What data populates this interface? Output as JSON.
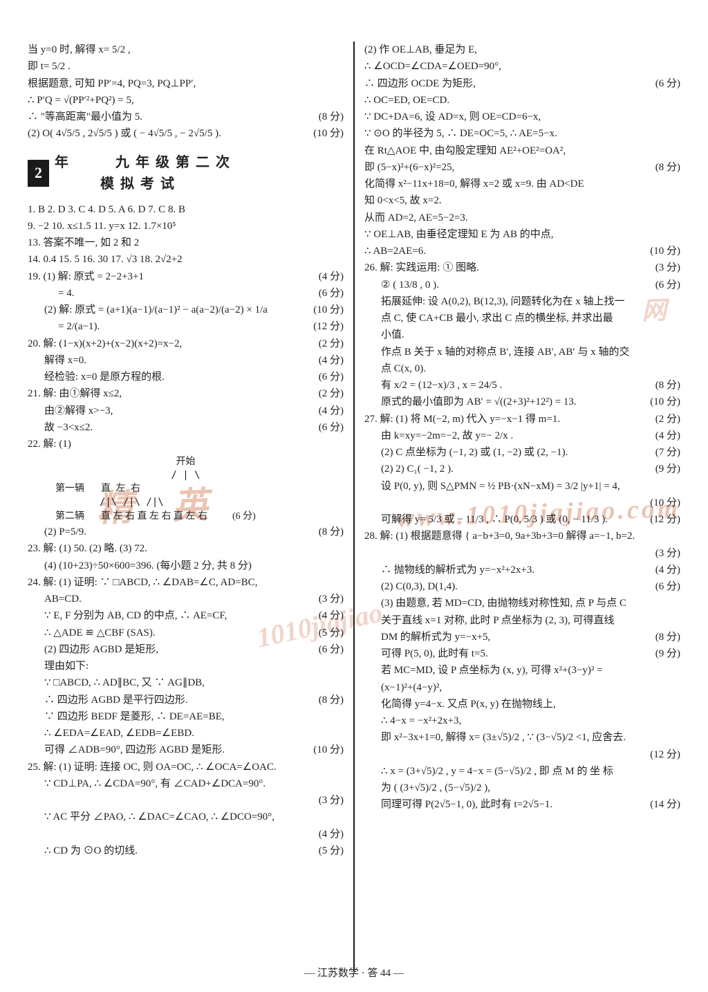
{
  "footer": "— 江苏数学 · 答 44 —",
  "watermarks": {
    "a": "精 英",
    "b": "www.1010jiajiao.com",
    "c": "网",
    "d": "1010jiajiao"
  },
  "title": {
    "num": "2",
    "text": "年　　　九 年 级 第 二 次\n　　　模 拟 考 试"
  },
  "left": [
    {
      "t": "当 y=0 时, 解得 x= 5/2 ,"
    },
    {
      "t": "即 t= 5/2 ."
    },
    {
      "t": "根据题意, 可知 PP′=4, PQ=3, PQ⊥PP′,"
    },
    {
      "t": "∴ P′Q = √(PP′²+PQ²) = 5,"
    },
    {
      "t": "∴ \"等高距离\"最小值为 5.",
      "p": "(8 分)"
    },
    {
      "t": "(2) O( 4√5/5 , 2√5/5 ) 或 ( − 4√5/5 , − 2√5/5 ).",
      "p": "(10 分)"
    }
  ],
  "leftB": [
    {
      "t": "1. B  2. D  3. C  4. D  5. A  6. D  7. C  8. B"
    },
    {
      "t": "9. −2  10. x≤1.5  11. y=x  12. 1.7×10⁵"
    },
    {
      "t": "13. 答案不唯一, 如 2 和 2"
    },
    {
      "t": "14. 0.4  15. 5  16. 30  17. √3  18. 2√2+2"
    },
    {
      "t": "19. (1) 解: 原式 = 2−2+3+1",
      "p": "(4 分)"
    },
    {
      "t": "                = 4.",
      "cls": "indent2",
      "p": "(6 分)"
    },
    {
      "t": "(2) 解: 原式 = (a+1)(a−1)/(a−1)² − a(a−2)/(a−2) × 1/a",
      "cls": "indent1",
      "p": "(10 分)"
    },
    {
      "t": "              = 2/(a−1).",
      "cls": "indent2",
      "p": "(12 分)"
    },
    {
      "t": "20. 解: (1−x)(x+2)+(x−2)(x+2)=x−2,",
      "p": "(2 分)"
    },
    {
      "t": "解得 x=0.",
      "cls": "indent1",
      "p": "(4 分)"
    },
    {
      "t": "经检验: x=0 是原方程的根.",
      "cls": "indent1",
      "p": "(6 分)"
    },
    {
      "t": "21. 解: 由①解得 x≤2,",
      "p": "(2 分)"
    },
    {
      "t": "由②解得 x>−3,",
      "cls": "indent1",
      "p": "(4 分)"
    },
    {
      "t": "故 −3<x≤2.",
      "cls": "indent1",
      "p": "(6 分)"
    },
    {
      "t": "22. 解: (1)"
    }
  ],
  "diagram": {
    "start": "开始",
    "row1_label": "第一辆",
    "row1": "直      左      右",
    "branches": "/|\\   /|\\   /|\\",
    "row2_label": "第二辆",
    "row2": "直 左 右  直 左 右  直 左 右",
    "row2_pts": "(6 分)"
  },
  "leftC": [
    {
      "t": "(2) P=5/9.",
      "cls": "indent1",
      "p": "(8 分)"
    },
    {
      "t": "23. 解: (1) 50.   (2) 略.   (3) 72."
    },
    {
      "t": "(4) (10+23)÷50×600=396.     (每小题 2 分, 共 8 分)",
      "cls": "indent1"
    },
    {
      "t": "24. 解: (1) 证明: ∵ □ABCD, ∴ ∠DAB=∠C, AD=BC,"
    },
    {
      "t": "AB=CD.",
      "cls": "indent1",
      "p": "(3 分)"
    },
    {
      "t": "∵ E, F 分别为 AB, CD 的中点, ∴ AE=CF,",
      "cls": "indent1",
      "p": "(4 分)"
    },
    {
      "t": "∴ △ADE ≌ △CBF (SAS).",
      "cls": "indent1",
      "p": "(5 分)"
    },
    {
      "t": "(2) 四边形 AGBD 是矩形,",
      "cls": "indent1",
      "p": "(6 分)"
    },
    {
      "t": "理由如下:",
      "cls": "indent1"
    },
    {
      "t": "∵ □ABCD, ∴ AD∥BC, 又 ∵ AG∥DB,",
      "cls": "indent1"
    },
    {
      "t": "∴ 四边形 AGBD 是平行四边形.",
      "cls": "indent1",
      "p": "(8 分)"
    },
    {
      "t": "∵ 四边形 BEDF 是菱形, ∴ DE=AE=BE,",
      "cls": "indent1"
    },
    {
      "t": "∴ ∠EDA=∠EAD, ∠EDB=∠EBD.",
      "cls": "indent1"
    },
    {
      "t": "可得 ∠ADB=90°, 四边形 AGBD 是矩形.",
      "cls": "indent1",
      "p": "(10 分)"
    },
    {
      "t": "25. 解: (1) 证明: 连接 OC, 则 OA=OC, ∴ ∠OCA=∠OAC."
    },
    {
      "t": "∵ CD⊥PA, ∴ ∠CDA=90°, 有 ∠CAD+∠DCA=90°.",
      "cls": "indent1"
    },
    {
      "t": "",
      "p": "(3 分)"
    },
    {
      "t": "∵ AC 平分 ∠PAO, ∴ ∠DAC=∠CAO, ∴ ∠DCO=90°,",
      "cls": "indent1"
    },
    {
      "t": "",
      "p": "(4 分)"
    },
    {
      "t": "∴ CD 为 ⊙O 的切线.",
      "cls": "indent1",
      "p": "(5 分)"
    }
  ],
  "right": [
    {
      "t": "(2) 作 OE⊥AB, 垂足为 E,"
    },
    {
      "t": "∴ ∠OCD=∠CDA=∠OED=90°,"
    },
    {
      "t": "∴ 四边形 OCDE 为矩形,",
      "p": "(6 分)"
    },
    {
      "t": "∴ OC=ED, OE=CD."
    },
    {
      "t": "∵ DC+DA=6, 设 AD=x, 则 OE=CD=6−x,"
    },
    {
      "t": "∵ ⊙O 的半径为 5, ∴ DE=OC=5, ∴ AE=5−x."
    },
    {
      "t": "在 Rt△AOE 中, 由勾股定理知 AE²+OE²=OA²,"
    },
    {
      "t": "即 (5−x)²+(6−x)²=25,",
      "p": "(8 分)"
    },
    {
      "t": "化简得 x²−11x+18=0, 解得 x=2 或 x=9. 由 AD<DE"
    },
    {
      "t": "知 0<x<5, 故 x=2."
    },
    {
      "t": "从而 AD=2, AE=5−2=3."
    },
    {
      "t": "∵ OE⊥AB, 由垂径定理知 E 为 AB 的中点,"
    },
    {
      "t": "∴ AB=2AE=6.",
      "p": "(10 分)"
    },
    {
      "t": "26. 解: 实践运用: ① 图略.",
      "p": "(3 分)"
    },
    {
      "t": "② ( 13/8 , 0 ).",
      "cls": "indent1",
      "p": "(6 分)"
    },
    {
      "t": "拓展延伸: 设 A(0,2), B(12,3), 问题转化为在 x 轴上找一",
      "cls": "indent1"
    },
    {
      "t": "点 C, 使 CA+CB 最小, 求出 C 点的横坐标, 并求出最",
      "cls": "indent1"
    },
    {
      "t": "小值.",
      "cls": "indent1"
    },
    {
      "t": "作点 B 关于 x 轴的对称点 B′, 连接 AB′, AB′ 与 x 轴的交",
      "cls": "indent1"
    },
    {
      "t": "点 C(x, 0).",
      "cls": "indent1"
    },
    {
      "t": "有 x/2 = (12−x)/3 , x = 24/5 .",
      "cls": "indent1",
      "p": "(8 分)"
    },
    {
      "t": "原式的最小值即为 AB′ = √((2+3)²+12²) = 13.",
      "cls": "indent1",
      "p": "(10 分)"
    },
    {
      "t": "27. 解: (1) 将 M(−2, m) 代入 y=−x−1 得 m=1.",
      "p": "(2 分)"
    },
    {
      "t": "由 k=xy=−2m=−2, 故 y=− 2/x .",
      "cls": "indent1",
      "p": "(4 分)"
    },
    {
      "t": "(2) C 点坐标为 (−1, 2) 或 (1, −2) 或 (2, −1).",
      "cls": "indent1",
      "p": "(7 分)"
    },
    {
      "t": "(2) 2) C₁( −1, 2 ).",
      "cls": "indent1",
      "p": "(9 分)"
    },
    {
      "t": "设 P(0, y), 则 S△PMN = ½ PB·(xN−xM) = 3/2 |y+1| = 4,",
      "cls": "indent1"
    },
    {
      "t": "",
      "p": "(10 分)"
    },
    {
      "t": "可解得 y= 5/3 或 − 11/3 , ∴ P(0, 5/3 ) 或 (0, − 11/3 ).",
      "cls": "indent1",
      "p": "(12 分)"
    },
    {
      "t": "28. 解: (1) 根据题意得 { a−b+3=0,  9a+3b+3=0  解得 a=−1, b=2."
    },
    {
      "t": "",
      "p": "(3 分)"
    },
    {
      "t": "∴ 抛物线的解析式为 y=−x²+2x+3.",
      "cls": "indent1",
      "p": "(4 分)"
    },
    {
      "t": "(2) C(0,3), D(1,4).",
      "cls": "indent1",
      "p": "(6 分)"
    },
    {
      "t": "(3) 由题意, 若 MD=CD, 由抛物线对称性知, 点 P 与点 C",
      "cls": "indent1"
    },
    {
      "t": "关于直线 x=1 对称, 此时 P 点坐标为 (2, 3), 可得直线",
      "cls": "indent1"
    },
    {
      "t": "DM 的解析式为 y=−x+5,",
      "cls": "indent1",
      "p": "(8 分)"
    },
    {
      "t": "可得 P(5, 0), 此时有 t=5.",
      "cls": "indent1",
      "p": "(9 分)"
    },
    {
      "t": "若 MC=MD, 设 P 点坐标为 (x, y), 可得 x²+(3−y)² =",
      "cls": "indent1"
    },
    {
      "t": "(x−1)²+(4−y)²,",
      "cls": "indent1"
    },
    {
      "t": "化简得 y=4−x. 又点 P(x, y) 在抛物线上,",
      "cls": "indent1"
    },
    {
      "t": "∴ 4−x = −x²+2x+3,",
      "cls": "indent1"
    },
    {
      "t": "即 x²−3x+1=0, 解得 x= (3±√5)/2 , ∵ (3−√5)/2 <1, 应舍去.",
      "cls": "indent1"
    },
    {
      "t": "",
      "p": "(12 分)"
    },
    {
      "t": "∴ x = (3+√5)/2 , y = 4−x = (5−√5)/2 , 即 点 M 的 坐 标",
      "cls": "indent1"
    },
    {
      "t": "为 ( (3+√5)/2 , (5−√5)/2 ),",
      "cls": "indent1"
    },
    {
      "t": "同理可得 P(2√5−1, 0), 此时有 t=2√5−1.",
      "cls": "indent1",
      "p": "(14 分)"
    }
  ]
}
